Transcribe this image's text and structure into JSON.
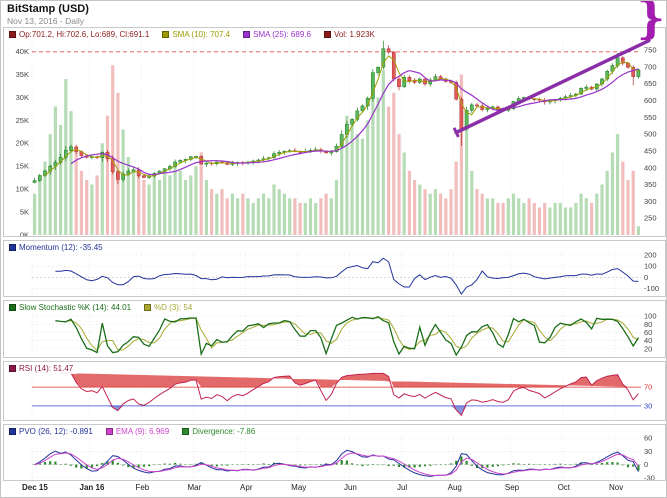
{
  "header": {
    "title": "BitStamp (USD)",
    "subtitle": "Nov 13, 2016 - Daily"
  },
  "annotations": {
    "brace_glyph": "}",
    "trend_color": "#8b2fa8",
    "alert_price": 745
  },
  "panels": {
    "price": {
      "legend": [
        {
          "color": "#8b1a1a",
          "label": "Op:701.2, Hi:702.6, Lo:689, Cl:691.1"
        },
        {
          "color": "#9a9a00",
          "label": "SMA (10): 707.4"
        },
        {
          "color": "#9933cc",
          "label": "SMA (25): 689.6"
        },
        {
          "color": "#8b1a1a",
          "label": "Vol: 1.923K"
        }
      ],
      "price_ticks": [
        750,
        700,
        650,
        600,
        550,
        500,
        450,
        400,
        350,
        300,
        250
      ],
      "price_range": [
        200,
        780
      ],
      "volume_ticks": [
        40,
        35,
        30,
        25,
        20,
        15,
        10,
        5,
        0
      ],
      "volume_max": 42.5
    },
    "momentum": {
      "legend": [
        {
          "color": "#223399",
          "label": "Momentum (12): -35.45"
        }
      ],
      "ticks": [
        200,
        100,
        0,
        -100
      ],
      "range": [
        -165,
        225
      ]
    },
    "stochastic": {
      "legend": [
        {
          "color": "#1a6e1a",
          "label": "Slow Stochastic %K (14): 44.01"
        },
        {
          "color": "#a8a832",
          "label": "%D (3): 54"
        }
      ],
      "ticks": [
        100,
        80,
        60,
        40,
        20
      ],
      "range": [
        0,
        110
      ]
    },
    "rsi": {
      "legend": [
        {
          "color": "#8b1a4a",
          "label": "RSI (14): 51.47"
        }
      ],
      "overbought": 70,
      "oversold": 30,
      "range": [
        0,
        100
      ]
    },
    "pvo": {
      "legend": [
        {
          "color": "#223399",
          "label": "PVO (26, 12): -0.891"
        },
        {
          "color": "#cc44cc",
          "label": "EMA (9): 6.969"
        },
        {
          "color": "#2d8a2d",
          "label": "Divergence: -7.86"
        }
      ],
      "ticks": [
        60,
        30,
        0,
        -30
      ],
      "range": [
        -35,
        65
      ]
    }
  },
  "x_axis": {
    "months": [
      {
        "label": "Dec 15",
        "index": 0,
        "bold": true
      },
      {
        "label": "Jan 16",
        "index": 11,
        "bold": true
      },
      {
        "label": "Feb",
        "index": 21
      },
      {
        "label": "Mar",
        "index": 31
      },
      {
        "label": "Apr",
        "index": 41
      },
      {
        "label": "May",
        "index": 51
      },
      {
        "label": "Jun",
        "index": 61
      },
      {
        "label": "Jul",
        "index": 71
      },
      {
        "label": "Aug",
        "index": 81
      },
      {
        "label": "Sep",
        "index": 92
      },
      {
        "label": "Oct",
        "index": 102
      },
      {
        "label": "Nov",
        "index": 112
      }
    ]
  },
  "chart_data": {
    "type": "candlestick",
    "title": "BitStamp (USD)",
    "interval": "Daily",
    "price_axis": {
      "side": "right",
      "range": [
        200,
        780
      ]
    },
    "volume_axis": {
      "side": "left",
      "range_k": [
        0,
        42.5
      ]
    },
    "closes": [
      362,
      377,
      390,
      405,
      416,
      431,
      452,
      462,
      448,
      436,
      431,
      433,
      430,
      446,
      427,
      388,
      365,
      381,
      390,
      394,
      376,
      371,
      376,
      383,
      390,
      397,
      404,
      417,
      422,
      425,
      433,
      434,
      411,
      414,
      412,
      417,
      415,
      410,
      414,
      416,
      415,
      417,
      420,
      423,
      427,
      430,
      442,
      446,
      449,
      451,
      448,
      447,
      449,
      452,
      454,
      450,
      444,
      448,
      464,
      499,
      529,
      544,
      569,
      584,
      607,
      683,
      699,
      754,
      744,
      664,
      641,
      669,
      659,
      654,
      664,
      649,
      661,
      671,
      664,
      657,
      654,
      604,
      516,
      571,
      587,
      584,
      573,
      576,
      581,
      574,
      571,
      576,
      597,
      606,
      609,
      605,
      603,
      601,
      596,
      599,
      603,
      607,
      611,
      615,
      619,
      636,
      640,
      634,
      649,
      664,
      687,
      704,
      727,
      711,
      699,
      671,
      691
    ],
    "volumes_k": [
      9,
      12,
      16,
      22,
      28,
      24,
      34,
      27,
      19,
      14,
      12,
      11,
      13,
      20,
      26,
      37,
      31,
      23,
      17,
      14,
      13,
      12,
      11,
      13,
      12,
      14,
      13,
      16,
      14,
      12,
      13,
      15,
      18,
      12,
      10,
      9,
      10,
      8,
      9,
      8,
      9,
      8,
      7,
      8,
      9,
      8,
      11,
      10,
      9,
      8,
      8,
      7,
      7,
      8,
      7,
      8,
      9,
      8,
      12,
      20,
      26,
      24,
      22,
      21,
      25,
      34,
      30,
      36,
      28,
      31,
      22,
      18,
      14,
      12,
      11,
      10,
      9,
      10,
      9,
      8,
      10,
      16,
      35,
      26,
      14,
      10,
      9,
      8,
      8,
      7,
      7,
      8,
      9,
      8,
      7,
      8,
      7,
      6,
      7,
      6,
      7,
      7,
      6,
      6,
      7,
      9,
      8,
      7,
      9,
      11,
      14,
      18,
      22,
      16,
      12,
      14,
      1.9
    ],
    "wick_events": [
      {
        "index": 16,
        "low": 352
      },
      {
        "index": 67,
        "high": 778
      },
      {
        "index": 82,
        "low": 465
      },
      {
        "index": 112,
        "high": 742
      },
      {
        "index": 115,
        "low": 645
      }
    ],
    "trend_line": {
      "from_index": 81,
      "from_price": 505,
      "to_index": 118,
      "to_price": 778
    },
    "derive": {
      "open_rule": "previous_close",
      "momentum_bars": 4,
      "stoch_bars": 5,
      "stoch_d_bars": 3,
      "rsi_bars": 5,
      "pvo_fast_bars": 4,
      "pvo_slow_bars": 9,
      "pvo_signal_bars": 3,
      "sma_fast_bars": 3,
      "sma_slow_bars": 8
    }
  }
}
